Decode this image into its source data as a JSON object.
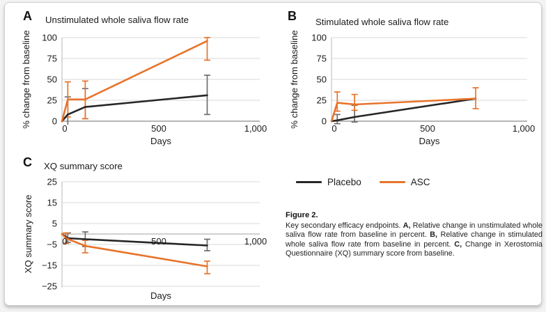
{
  "page": {
    "background": "#ffffff",
    "card_border": "#cfcfcf"
  },
  "figure": {
    "legend": {
      "position": "bottom-right",
      "items": [
        {
          "label": "Placebo",
          "color": "#262626"
        },
        {
          "label": "ASC",
          "color": "#E8732A"
        }
      ]
    },
    "caption": {
      "title": "Figure 2.",
      "segments": [
        {
          "text": "Key secondary efficacy endpoints. ",
          "bold": false
        },
        {
          "text": "A,",
          "bold": true
        },
        {
          "text": " Relative change in unstimulated whole saliva flow rate from baseline in percent. ",
          "bold": false
        },
        {
          "text": "B,",
          "bold": true
        },
        {
          "text": " Relative change in stimulated whole saliva flow rate from baseline in percent. ",
          "bold": false
        },
        {
          "text": "C,",
          "bold": true
        },
        {
          "text": " Change in Xerostomia Questionnaire (XQ) summary score from baseline.",
          "bold": false
        }
      ]
    }
  },
  "chart_data": [
    {
      "type": "line",
      "panel": "A",
      "title": "Unstimulated whole saliva flow rate",
      "xlabel": "Days",
      "ylabel": "% change from baseline",
      "xlim": [
        0,
        1010
      ],
      "ylim": [
        0,
        100
      ],
      "grid": true,
      "x_labels_at_zero": false,
      "x_ticks": [
        {
          "v": 0,
          "label": "0"
        },
        {
          "v": 500,
          "label": "500"
        },
        {
          "v": 1000,
          "label": "1,000"
        }
      ],
      "y_ticks": [
        {
          "v": 0,
          "label": "0"
        },
        {
          "v": 25,
          "label": "25"
        },
        {
          "v": 50,
          "label": "50"
        },
        {
          "v": 75,
          "label": "75"
        },
        {
          "v": 100,
          "label": "100"
        }
      ],
      "series": [
        {
          "name": "Placebo",
          "color": "#262626",
          "error_color": "#6e6e6e",
          "x": [
            0,
            30,
            120,
            750
          ],
          "y": [
            0,
            8,
            17,
            31
          ],
          "error_bars": [
            {
              "x": 30,
              "lo": -14,
              "hi": 29
            },
            {
              "x": 120,
              "lo": 3,
              "hi": 39
            },
            {
              "x": 750,
              "lo": 8,
              "hi": 55
            }
          ]
        },
        {
          "name": "ASC",
          "color": "#E8732A",
          "error_color": "#E8732A",
          "x": [
            0,
            30,
            120,
            750
          ],
          "y": [
            0,
            26,
            26,
            96
          ],
          "error_bars": [
            {
              "x": 30,
              "lo": 5,
              "hi": 47
            },
            {
              "x": 120,
              "lo": 3,
              "hi": 48
            },
            {
              "x": 750,
              "lo": 73,
              "hi": 100
            }
          ]
        }
      ]
    },
    {
      "type": "line",
      "panel": "B",
      "title": "Stimulated whole saliva flow rate",
      "xlabel": "Days",
      "ylabel": "% change from baseline",
      "xlim": [
        0,
        1010
      ],
      "ylim": [
        0,
        100
      ],
      "grid": true,
      "x_labels_at_zero": false,
      "x_ticks": [
        {
          "v": 0,
          "label": "0"
        },
        {
          "v": 500,
          "label": "500"
        },
        {
          "v": 1000,
          "label": "1,000"
        }
      ],
      "y_ticks": [
        {
          "v": 0,
          "label": "0"
        },
        {
          "v": 25,
          "label": "25"
        },
        {
          "v": 50,
          "label": "50"
        },
        {
          "v": 75,
          "label": "75"
        },
        {
          "v": 100,
          "label": "100"
        }
      ],
      "series": [
        {
          "name": "Placebo",
          "color": "#262626",
          "error_color": "#6e6e6e",
          "x": [
            0,
            30,
            120,
            750
          ],
          "y": [
            0,
            1,
            5,
            27
          ],
          "error_bars": [
            {
              "x": 30,
              "lo": -3,
              "hi": 8
            },
            {
              "x": 120,
              "lo": -1,
              "hi": 19
            }
          ]
        },
        {
          "name": "ASC",
          "color": "#E8732A",
          "error_color": "#E8732A",
          "x": [
            0,
            30,
            120,
            750
          ],
          "y": [
            0,
            22,
            20,
            27
          ],
          "error_bars": [
            {
              "x": 30,
              "lo": 12,
              "hi": 35
            },
            {
              "x": 120,
              "lo": 13,
              "hi": 32
            },
            {
              "x": 750,
              "lo": 15,
              "hi": 40
            }
          ]
        }
      ]
    },
    {
      "type": "line",
      "panel": "C",
      "title": "XQ summary score",
      "xlabel": "Days",
      "ylabel": "XQ summary score",
      "xlim": [
        0,
        1010
      ],
      "ylim": [
        -25,
        25
      ],
      "grid": true,
      "x_labels_at_zero": true,
      "x_ticks": [
        {
          "v": 0,
          "label": "0"
        },
        {
          "v": 500,
          "label": "500"
        },
        {
          "v": 1000,
          "label": "1,000"
        }
      ],
      "y_ticks": [
        {
          "v": 25,
          "label": "25"
        },
        {
          "v": 15,
          "label": "15"
        },
        {
          "v": 5,
          "label": "5"
        },
        {
          "v": -5,
          "label": "−5"
        },
        {
          "v": -15,
          "label": "−15"
        },
        {
          "v": -25,
          "label": "−25"
        }
      ],
      "series": [
        {
          "name": "Placebo",
          "color": "#262626",
          "error_color": "#6e6e6e",
          "x": [
            0,
            30,
            120,
            750
          ],
          "y": [
            0,
            -2,
            -2.5,
            -5.5
          ],
          "error_bars": [
            {
              "x": 30,
              "lo": -4,
              "hi": 0.5
            },
            {
              "x": 120,
              "lo": -6,
              "hi": 1
            },
            {
              "x": 750,
              "lo": -8,
              "hi": -2.5
            }
          ]
        },
        {
          "name": "ASC",
          "color": "#E8732A",
          "error_color": "#E8732A",
          "x": [
            0,
            20,
            120,
            750
          ],
          "y": [
            0,
            -2,
            -5.7,
            -15.5
          ],
          "error_bars": [
            {
              "x": 20,
              "lo": -4.5,
              "hi": 0.5
            },
            {
              "x": 120,
              "lo": -9,
              "hi": -3
            },
            {
              "x": 750,
              "lo": -19,
              "hi": -13
            }
          ]
        }
      ]
    }
  ]
}
